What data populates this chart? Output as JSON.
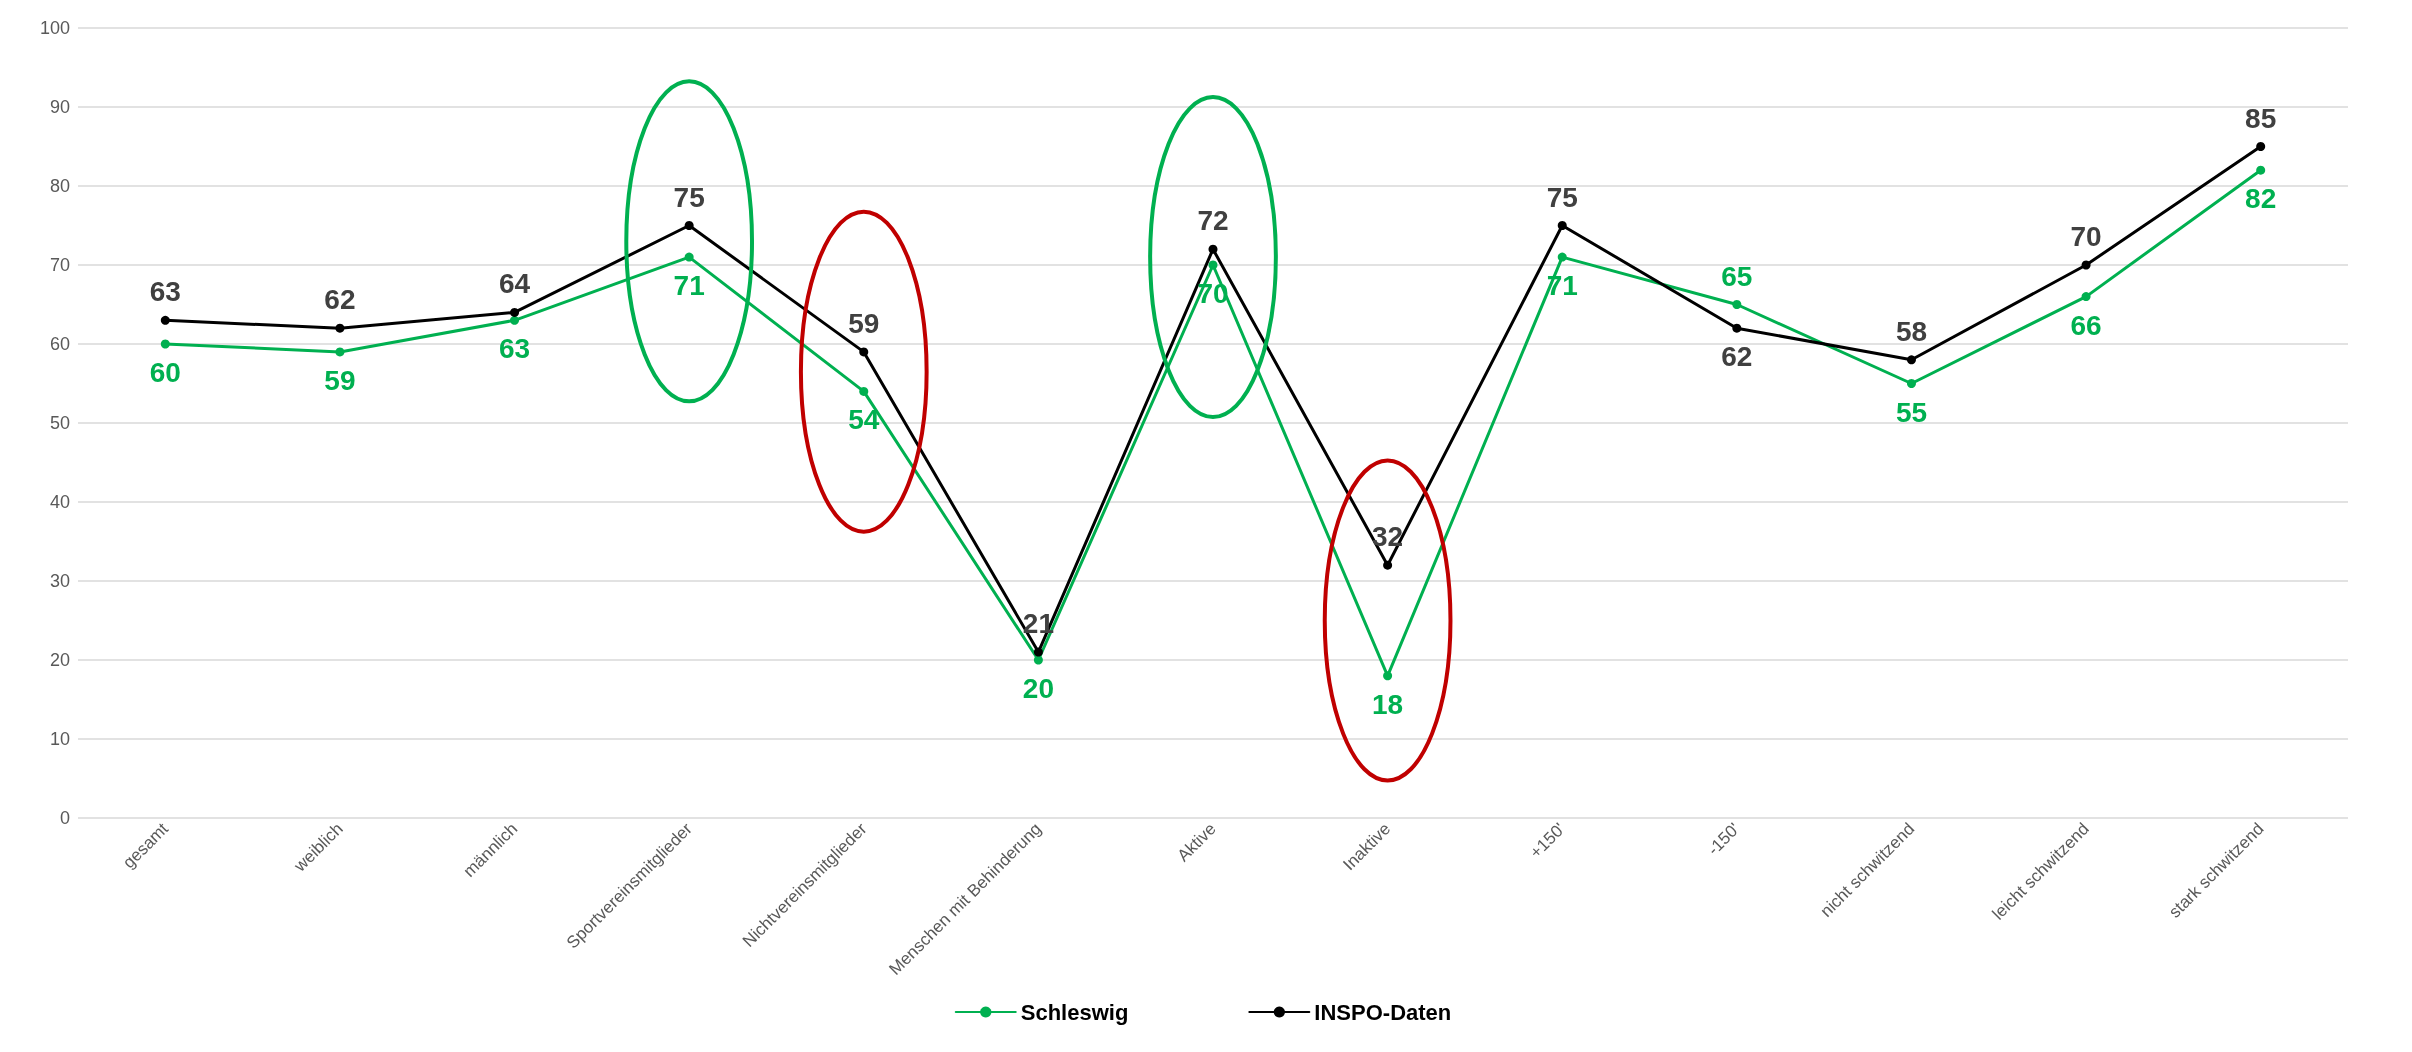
{
  "chart_data": {
    "type": "line",
    "categories": [
      "gesamt",
      "weiblich",
      "männlich",
      "Sportvereinsmitglieder",
      "Nichtvereinsmitglieder",
      "Menschen mit Behinderung",
      "Aktive",
      "Inaktive",
      "+150'",
      "-150'",
      "nicht schwitzend",
      "leicht schwitzend",
      "stark schwitzend"
    ],
    "series": [
      {
        "name": "Schleswig",
        "color": "#00b050",
        "values": [
          60,
          59,
          63,
          71,
          54,
          20,
          70,
          18,
          71,
          65,
          55,
          66,
          82
        ]
      },
      {
        "name": "INSPO-Daten",
        "color": "#000000",
        "values": [
          63,
          62,
          64,
          75,
          59,
          21,
          72,
          32,
          75,
          62,
          58,
          70,
          85
        ]
      }
    ],
    "ylim": [
      0,
      100
    ],
    "yticks": [
      0,
      10,
      20,
      30,
      40,
      50,
      60,
      70,
      80,
      90,
      100
    ],
    "grid": "y",
    "legend": "bottom",
    "marker": "circle",
    "line_style": "solid",
    "data_labels": true
  }
}
